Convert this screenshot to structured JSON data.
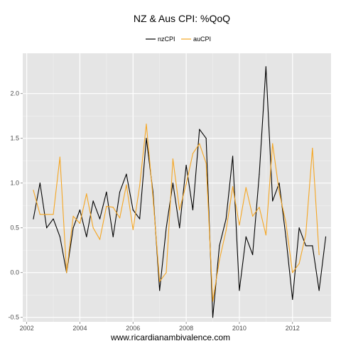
{
  "chart_data": {
    "type": "line",
    "title": "NZ & Aus CPI: %QoQ",
    "xlabel": "",
    "ylabel": "",
    "xlim": [
      2001.85,
      2013.45
    ],
    "ylim": [
      -0.55,
      2.45
    ],
    "xticks": [
      2002,
      2004,
      2006,
      2008,
      2010,
      2012
    ],
    "yticks": [
      -0.5,
      0.0,
      0.5,
      1.0,
      1.5,
      2.0
    ],
    "ytick_labels": [
      "-0.5",
      "0.0",
      "0.5",
      "1.0",
      "1.5",
      "2.0"
    ],
    "grid": true,
    "legend_position": "top",
    "series": [
      {
        "name": "nzCPI",
        "color": "#000000",
        "x": [
          2002.25,
          2002.5,
          2002.75,
          2003.0,
          2003.25,
          2003.5,
          2003.75,
          2004.0,
          2004.25,
          2004.5,
          2004.75,
          2005.0,
          2005.25,
          2005.5,
          2005.75,
          2006.0,
          2006.25,
          2006.5,
          2006.75,
          2007.0,
          2007.25,
          2007.5,
          2007.75,
          2008.0,
          2008.25,
          2008.5,
          2008.75,
          2009.0,
          2009.25,
          2009.5,
          2009.75,
          2010.0,
          2010.25,
          2010.5,
          2010.75,
          2011.0,
          2011.25,
          2011.5,
          2011.75,
          2012.0,
          2012.25,
          2012.5,
          2012.75,
          2013.0,
          2013.25
        ],
        "values": [
          0.6,
          1.0,
          0.5,
          0.6,
          0.4,
          0.0,
          0.5,
          0.7,
          0.4,
          0.8,
          0.6,
          0.9,
          0.4,
          0.9,
          1.1,
          0.7,
          0.6,
          1.5,
          0.9,
          -0.2,
          0.5,
          1.0,
          0.5,
          1.2,
          0.7,
          1.6,
          1.5,
          -0.5,
          0.3,
          0.6,
          1.3,
          -0.2,
          0.4,
          0.2,
          1.1,
          2.3,
          0.8,
          1.0,
          0.4,
          -0.3,
          0.5,
          0.3,
          0.3,
          -0.2,
          0.4
        ]
      },
      {
        "name": "auCPI",
        "color": "#f5a623",
        "x": [
          2002.25,
          2002.5,
          2002.75,
          2003.0,
          2003.25,
          2003.5,
          2003.75,
          2004.0,
          2004.25,
          2004.5,
          2004.75,
          2005.0,
          2005.25,
          2005.5,
          2005.75,
          2006.0,
          2006.25,
          2006.5,
          2006.75,
          2007.0,
          2007.25,
          2007.5,
          2007.75,
          2008.0,
          2008.25,
          2008.5,
          2008.75,
          2009.0,
          2009.25,
          2009.5,
          2009.75,
          2010.0,
          2010.25,
          2010.5,
          2010.75,
          2011.0,
          2011.25,
          2011.5,
          2011.75,
          2012.0,
          2012.25,
          2012.5,
          2012.75,
          2013.0
        ],
        "values": [
          0.92,
          0.65,
          0.65,
          0.65,
          1.29,
          0.0,
          0.63,
          0.55,
          0.88,
          0.5,
          0.37,
          0.74,
          0.73,
          0.61,
          0.98,
          0.48,
          0.97,
          1.66,
          0.84,
          -0.1,
          0.0,
          1.27,
          0.7,
          0.99,
          1.33,
          1.44,
          1.22,
          -0.32,
          0.14,
          0.47,
          0.96,
          0.53,
          0.95,
          0.63,
          0.73,
          0.42,
          1.44,
          0.9,
          0.56,
          0.0,
          0.1,
          0.43,
          1.39,
          0.2
        ]
      }
    ]
  },
  "caption": "www.ricardianambivalence.com"
}
